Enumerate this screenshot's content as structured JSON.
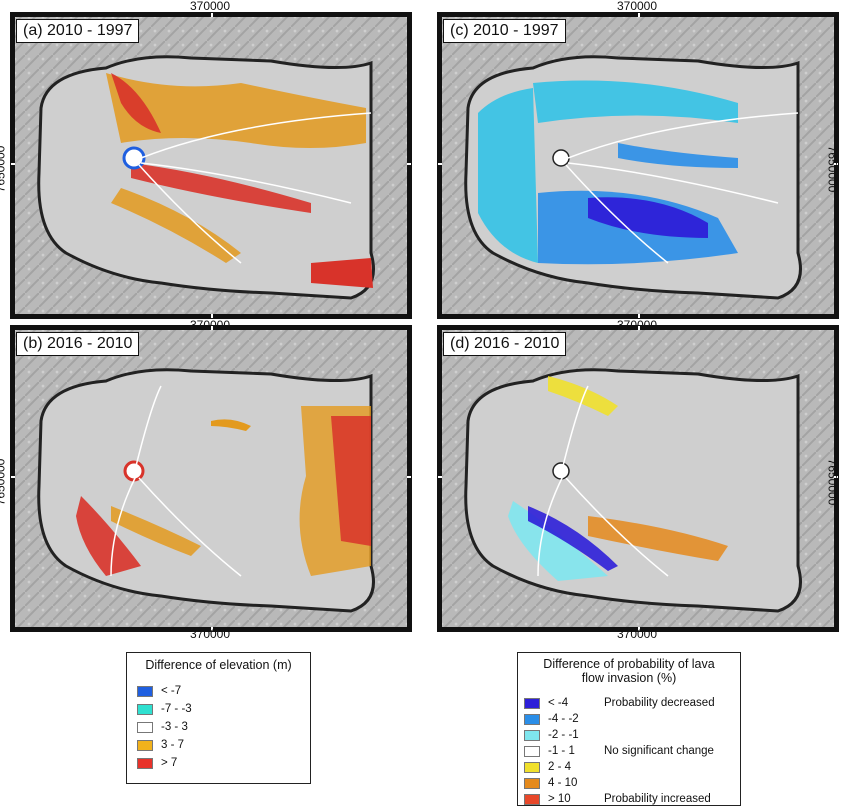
{
  "panels": [
    {
      "label": "(a) 2010 - 1997",
      "coord_top": "370000",
      "coord_side": "7650000",
      "side": "left",
      "type": "elevation"
    },
    {
      "label": "(c) 2010 - 1997",
      "coord_top": "370000",
      "coord_side": "7650000",
      "side": "right",
      "type": "prob_decrease"
    },
    {
      "label": "(b) 2016 - 2010",
      "coord_top": "370000",
      "coord_side": "7650000",
      "side": "left",
      "type": "elevation_2016"
    },
    {
      "label": "(d) 2016 - 2010",
      "coord_top": "370000",
      "coord_side": "7650000",
      "side": "right",
      "type": "prob_2016"
    }
  ],
  "coord_bottom": "370000",
  "legend_elevation": {
    "title": "Difference of elevation (m)",
    "items": [
      {
        "label": "< -7",
        "color": "#1f5fe0"
      },
      {
        "label": "-7 - -3",
        "color": "#2fe0d0"
      },
      {
        "label": "-3 - 3",
        "color": "#ffffff"
      },
      {
        "label": "3 - 7",
        "color": "#f2b21c"
      },
      {
        "label": "> 7",
        "color": "#e8322a"
      }
    ]
  },
  "legend_probability": {
    "title_line1": "Difference of probability of lava",
    "title_line2": "flow invasion (%)",
    "items": [
      {
        "label": "< -4",
        "color": "#2d1fd8"
      },
      {
        "label": "-4 - -2",
        "color": "#2a8ee8"
      },
      {
        "label": "-2 - -1",
        "color": "#7fe6ee"
      },
      {
        "label": "-1 - 1",
        "color": "#ffffff"
      },
      {
        "label": "2 - 4",
        "color": "#f0e02c"
      },
      {
        "label": "4 - 10",
        "color": "#e58a1c"
      },
      {
        "label": "> 10",
        "color": "#e8482a"
      }
    ],
    "note_decreased": "Probability decreased",
    "note_no_change": "No significant change",
    "note_increased": "Probability increased"
  }
}
